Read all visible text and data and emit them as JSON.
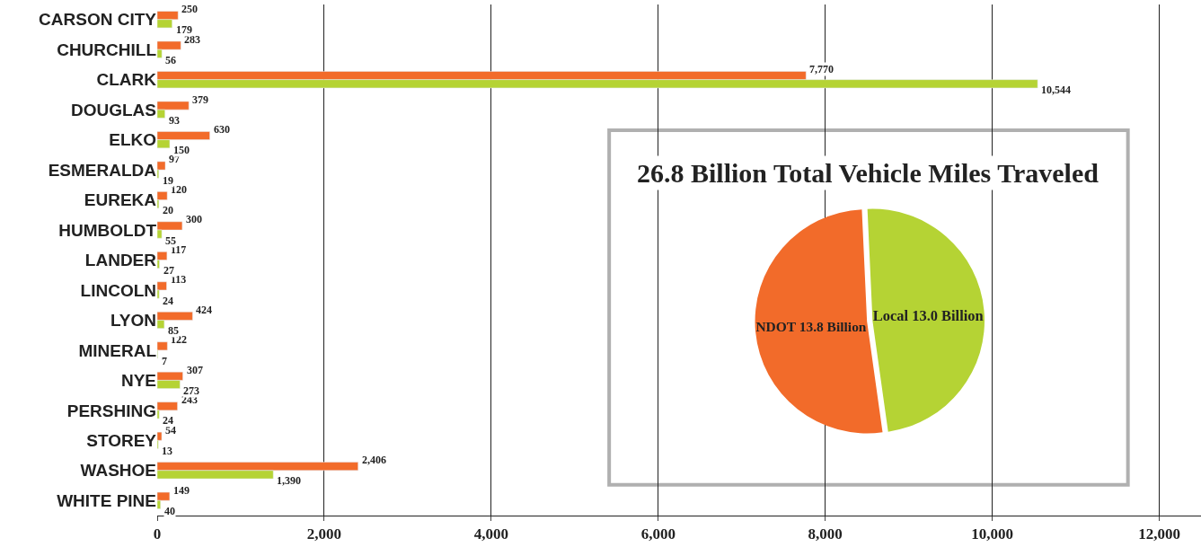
{
  "chart_data": [
    {
      "type": "bar",
      "orientation": "horizontal",
      "categories": [
        "CARSON CITY",
        "CHURCHILL",
        "CLARK",
        "DOUGLAS",
        "ELKO",
        "ESMERALDA",
        "EUREKA",
        "HUMBOLDT",
        "LANDER",
        "LINCOLN",
        "LYON",
        "MINERAL",
        "NYE",
        "PERSHING",
        "STOREY",
        "WASHOE",
        "WHITE PINE"
      ],
      "series": [
        {
          "color": "#f26b2a",
          "values": [
            250,
            283,
            7770,
            379,
            630,
            97,
            120,
            300,
            117,
            113,
            424,
            122,
            307,
            243,
            54,
            2406,
            149
          ],
          "value_labels": [
            "250",
            "283",
            "7,770",
            "379",
            "630",
            "97",
            "120",
            "300",
            "117",
            "113",
            "424",
            "122",
            "307",
            "243",
            "54",
            "2,406",
            "149"
          ]
        },
        {
          "color": "#b5d334",
          "values": [
            179,
            56,
            10544,
            93,
            150,
            19,
            20,
            55,
            27,
            24,
            85,
            7,
            273,
            24,
            13,
            1390,
            40
          ],
          "value_labels": [
            "179",
            "56",
            "10,544",
            "93",
            "150",
            "19",
            "20",
            "55",
            "27",
            "24",
            "85",
            "7",
            "273",
            "24",
            "13",
            "1,390",
            "40"
          ]
        }
      ],
      "xlim": [
        0,
        12500
      ],
      "xticks": [
        {
          "value": 0,
          "label": "0"
        },
        {
          "value": 2000,
          "label": "2,000"
        },
        {
          "value": 4000,
          "label": "4,000"
        },
        {
          "value": 6000,
          "label": "6,000"
        },
        {
          "value": 8000,
          "label": "8,000"
        },
        {
          "value": 10000,
          "label": "10,000"
        },
        {
          "value": 12000,
          "label": "12,000"
        }
      ],
      "grid": "x"
    },
    {
      "type": "pie",
      "title": "26.8 Billion Total Vehicle Miles Traveled",
      "categories": [
        "NDOT 13.8 Billion",
        "Local 13.0 Billion"
      ],
      "values": [
        13.8,
        13.0
      ],
      "colors": [
        "#f26b2a",
        "#b5d334"
      ]
    }
  ]
}
